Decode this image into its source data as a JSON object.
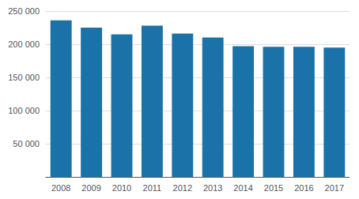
{
  "chart_data": {
    "type": "bar",
    "categories": [
      "2008",
      "2009",
      "2010",
      "2011",
      "2012",
      "2013",
      "2014",
      "2015",
      "2016",
      "2017"
    ],
    "values": [
      236000,
      225000,
      215000,
      228000,
      216000,
      210000,
      197000,
      196000,
      196000,
      195000
    ],
    "color": "#1a72a8",
    "ylim": [
      0,
      250000
    ],
    "yticks": [
      {
        "value": 50000,
        "label": "50 000"
      },
      {
        "value": 100000,
        "label": "100 000"
      },
      {
        "value": 150000,
        "label": "150 000"
      },
      {
        "value": 200000,
        "label": "200 000"
      },
      {
        "value": 250000,
        "label": "250 000"
      }
    ],
    "grid": true
  }
}
